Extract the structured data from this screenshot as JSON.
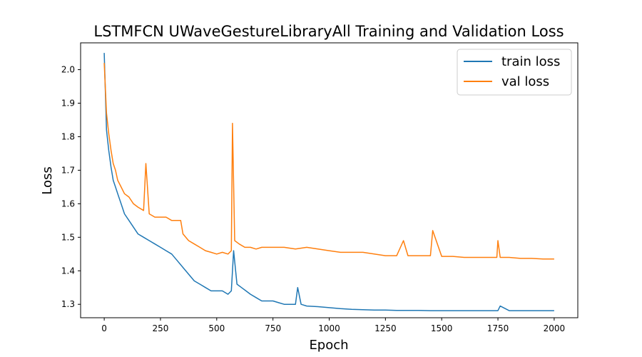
{
  "chart_data": {
    "type": "line",
    "title": "LSTMFCN UWaveGestureLibraryAll Training and Validation Loss",
    "xlabel": "Epoch",
    "ylabel": "Loss",
    "xlim": [
      -105,
      2105
    ],
    "ylim": [
      1.26,
      2.08
    ],
    "xticks": [
      0,
      250,
      500,
      750,
      1000,
      1250,
      1500,
      1750,
      2000
    ],
    "yticks": [
      1.3,
      1.4,
      1.5,
      1.6,
      1.7,
      1.8,
      1.9,
      2.0
    ],
    "ytick_labels": [
      "1.3",
      "1.4",
      "1.5",
      "1.6",
      "1.7",
      "1.8",
      "1.9",
      "2.0"
    ],
    "legend_position": "top-right",
    "series": [
      {
        "name": "train loss",
        "color": "#1f77b4",
        "x": [
          0,
          10,
          20,
          30,
          40,
          50,
          60,
          75,
          90,
          110,
          130,
          150,
          175,
          200,
          225,
          250,
          275,
          300,
          325,
          350,
          375,
          400,
          425,
          450,
          475,
          500,
          525,
          550,
          565,
          575,
          590,
          610,
          630,
          650,
          675,
          700,
          725,
          750,
          775,
          800,
          825,
          850,
          860,
          875,
          900,
          950,
          1000,
          1050,
          1100,
          1150,
          1200,
          1250,
          1300,
          1350,
          1400,
          1450,
          1500,
          1550,
          1600,
          1650,
          1700,
          1750,
          1760,
          1800,
          1850,
          1900,
          1950,
          2000
        ],
        "y": [
          2.05,
          1.82,
          1.76,
          1.71,
          1.67,
          1.65,
          1.63,
          1.6,
          1.57,
          1.55,
          1.53,
          1.51,
          1.5,
          1.49,
          1.48,
          1.47,
          1.46,
          1.45,
          1.43,
          1.41,
          1.39,
          1.37,
          1.36,
          1.35,
          1.34,
          1.34,
          1.34,
          1.33,
          1.34,
          1.46,
          1.36,
          1.35,
          1.34,
          1.33,
          1.32,
          1.31,
          1.31,
          1.31,
          1.305,
          1.3,
          1.3,
          1.3,
          1.35,
          1.3,
          1.295,
          1.293,
          1.29,
          1.287,
          1.285,
          1.284,
          1.283,
          1.283,
          1.282,
          1.282,
          1.282,
          1.281,
          1.281,
          1.281,
          1.281,
          1.281,
          1.281,
          1.281,
          1.295,
          1.281,
          1.281,
          1.281,
          1.281,
          1.281
        ]
      },
      {
        "name": "val loss",
        "color": "#ff7f0e",
        "x": [
          0,
          10,
          20,
          30,
          40,
          50,
          60,
          75,
          90,
          110,
          130,
          150,
          175,
          185,
          200,
          225,
          250,
          275,
          300,
          325,
          340,
          350,
          375,
          400,
          425,
          450,
          475,
          500,
          525,
          550,
          565,
          570,
          580,
          600,
          625,
          650,
          675,
          700,
          750,
          800,
          850,
          900,
          950,
          1000,
          1050,
          1100,
          1150,
          1200,
          1250,
          1300,
          1330,
          1350,
          1400,
          1450,
          1460,
          1500,
          1550,
          1600,
          1650,
          1700,
          1745,
          1750,
          1760,
          1800,
          1850,
          1900,
          1950,
          2000
        ],
        "y": [
          2.02,
          1.87,
          1.81,
          1.76,
          1.72,
          1.7,
          1.67,
          1.65,
          1.63,
          1.62,
          1.6,
          1.59,
          1.58,
          1.72,
          1.57,
          1.56,
          1.56,
          1.56,
          1.55,
          1.55,
          1.55,
          1.51,
          1.49,
          1.48,
          1.47,
          1.46,
          1.455,
          1.45,
          1.455,
          1.45,
          1.46,
          1.84,
          1.49,
          1.48,
          1.47,
          1.47,
          1.465,
          1.47,
          1.47,
          1.47,
          1.465,
          1.47,
          1.465,
          1.46,
          1.455,
          1.455,
          1.455,
          1.45,
          1.445,
          1.445,
          1.49,
          1.445,
          1.445,
          1.445,
          1.52,
          1.443,
          1.443,
          1.44,
          1.44,
          1.44,
          1.44,
          1.49,
          1.44,
          1.44,
          1.437,
          1.437,
          1.435,
          1.435
        ]
      }
    ]
  }
}
